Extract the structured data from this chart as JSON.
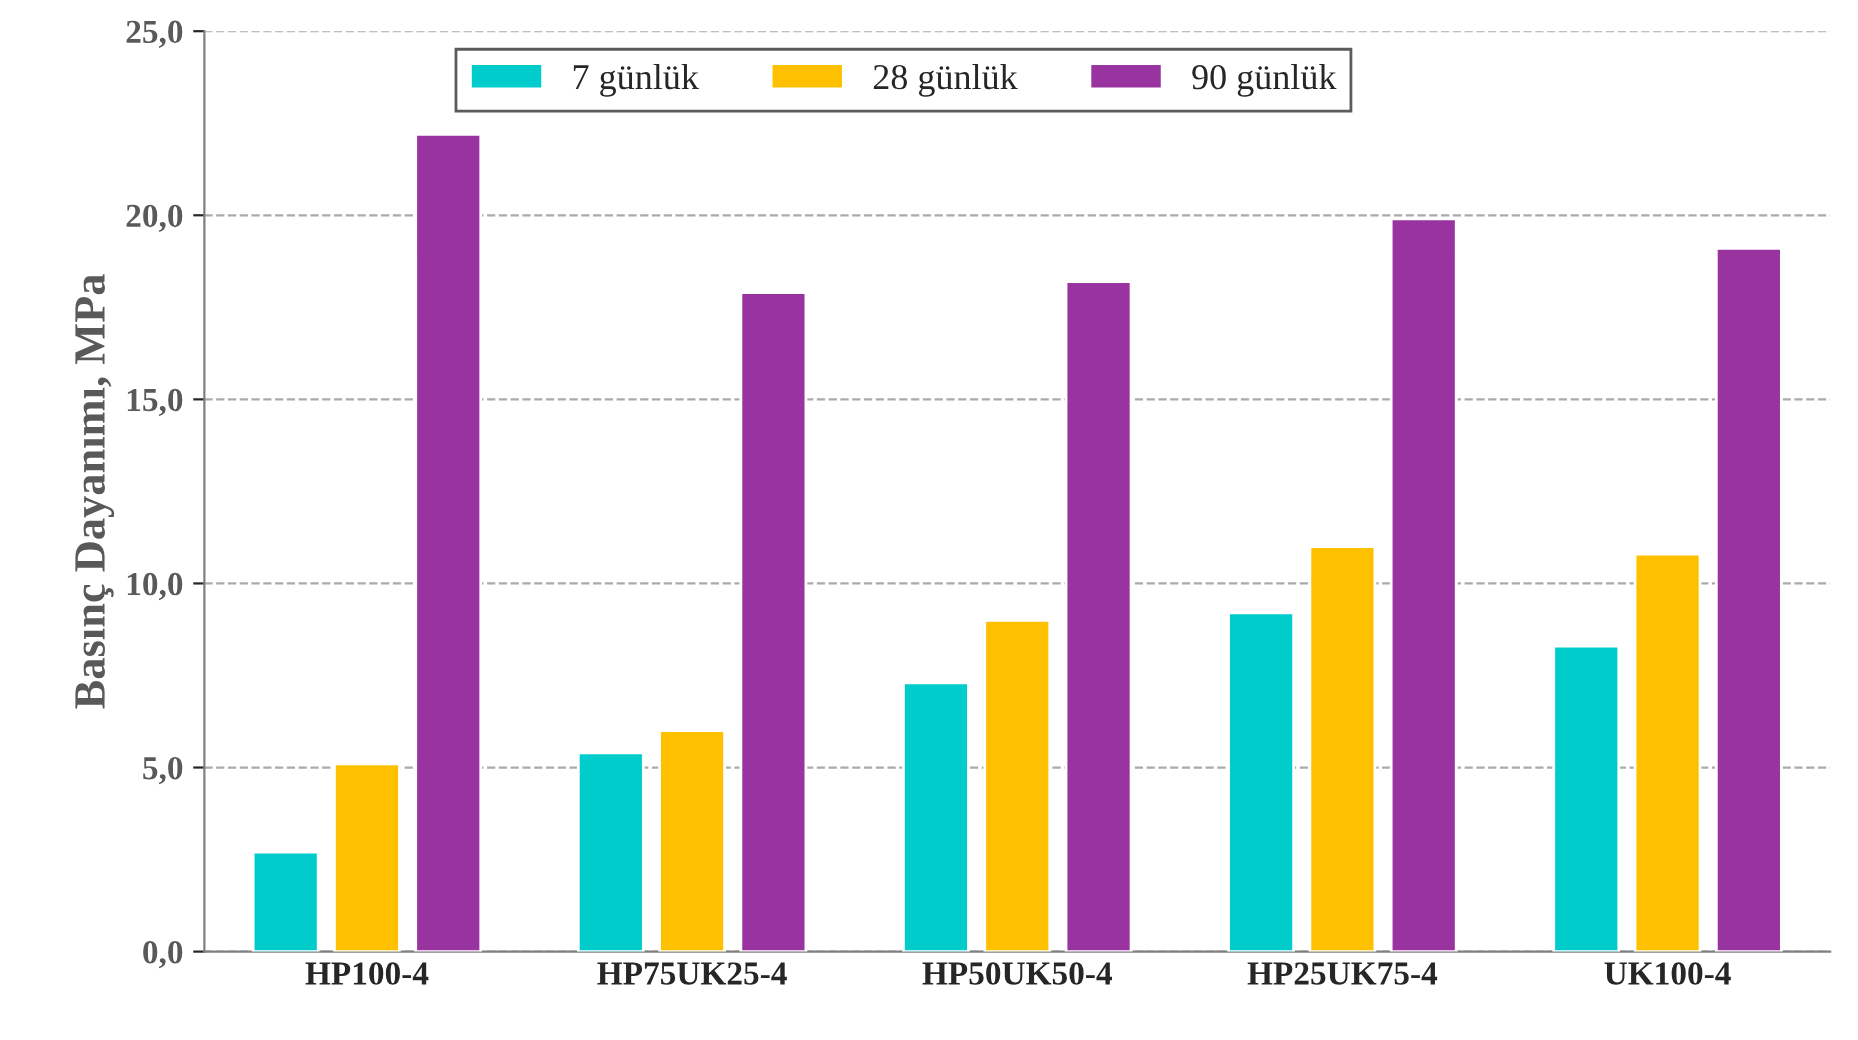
{
  "chart_data": {
    "type": "bar",
    "ylabel": "Basınç Dayanımı, MPa",
    "categories": [
      "HP100-4",
      "HP75UK25-4",
      "HP50UK50-4",
      "HP25UK75-4",
      "UK100-4"
    ],
    "series": [
      {
        "name": "7 günlük",
        "color": "#00cccc",
        "values": [
          2.7,
          5.4,
          7.3,
          9.2,
          8.3
        ]
      },
      {
        "name": "28 günlük",
        "color": "#ffc000",
        "values": [
          5.1,
          6.0,
          9.0,
          11.0,
          10.8
        ]
      },
      {
        "name": "90 günlük",
        "color": "#9933a0",
        "values": [
          22.2,
          17.9,
          18.2,
          19.9,
          19.1
        ]
      }
    ],
    "ylim": [
      0,
      25
    ],
    "yticks": [
      {
        "value": 0,
        "label": "0,0"
      },
      {
        "value": 5,
        "label": "5,0"
      },
      {
        "value": 10,
        "label": "10,0"
      },
      {
        "value": 15,
        "label": "15,0"
      },
      {
        "value": 20,
        "label": "20,0"
      },
      {
        "value": 25,
        "label": "25,0"
      }
    ],
    "grid": "y",
    "legend": "top"
  }
}
